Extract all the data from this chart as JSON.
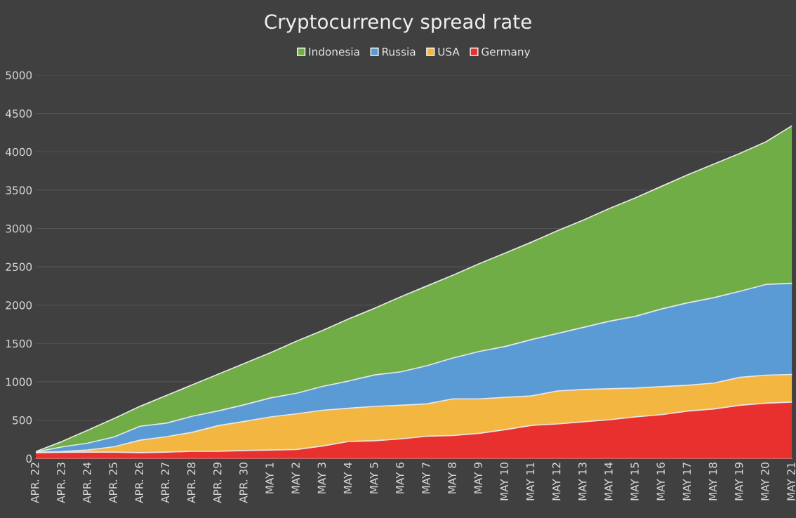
{
  "chart_data": {
    "type": "area",
    "stacked": true,
    "title": "Cryptocurrency spread rate",
    "categories": [
      "APR. 22",
      "APR. 23",
      "APR. 24",
      "APR. 25",
      "APR. 26",
      "APR. 27",
      "APR. 28",
      "APR. 29",
      "APR. 30",
      "MAY 1",
      "MAY 2",
      "MAY 3",
      "MAY 4",
      "MAY 5",
      "MAY 6",
      "MAY 7",
      "MAY 8",
      "MAY 9",
      "MAY 10",
      "MAY 11",
      "MAY 12",
      "MAY 13",
      "MAY 14",
      "MAY 15",
      "MAY 16",
      "MAY 17",
      "MAY 18",
      "MAY 19",
      "MAY 20",
      "MAY 21"
    ],
    "series": [
      {
        "name": "Germany",
        "color": "#e8312e",
        "values": [
          75,
          80,
          83,
          83,
          76,
          83,
          93,
          93,
          103,
          110,
          117,
          162,
          221,
          231,
          255,
          290,
          300,
          328,
          375,
          431,
          450,
          478,
          505,
          543,
          571,
          618,
          646,
          693,
          721,
          735
        ]
      },
      {
        "name": "USA",
        "color": "#f3b640",
        "values": [
          5,
          10,
          27,
          69,
          162,
          200,
          248,
          335,
          380,
          431,
          466,
          466,
          434,
          448,
          438,
          422,
          477,
          449,
          421,
          384,
          430,
          421,
          403,
          375,
          365,
          337,
          337,
          365,
          365,
          360
        ]
      },
      {
        "name": "Russia",
        "color": "#5b9bd5",
        "values": [
          5,
          60,
          90,
          128,
          182,
          177,
          209,
          192,
          217,
          249,
          267,
          312,
          355,
          411,
          437,
          498,
          533,
          618,
          664,
          735,
          750,
          811,
          882,
          936,
          1014,
          1075,
          1114,
          1122,
          1184,
          1190
        ]
      },
      {
        "name": "Indonesia",
        "color": "#70ad47",
        "values": [
          5,
          70,
          170,
          240,
          260,
          360,
          410,
          480,
          540,
          590,
          680,
          730,
          810,
          870,
          980,
          1040,
          1080,
          1145,
          1220,
          1270,
          1340,
          1400,
          1470,
          1546,
          1600,
          1670,
          1743,
          1800,
          1860,
          2055
        ]
      }
    ],
    "ylim": [
      0,
      5000
    ],
    "yticks": [
      0,
      500,
      1000,
      1500,
      2000,
      2500,
      3000,
      3500,
      4000,
      4500,
      5000
    ],
    "grid": "y",
    "legend": "top"
  }
}
